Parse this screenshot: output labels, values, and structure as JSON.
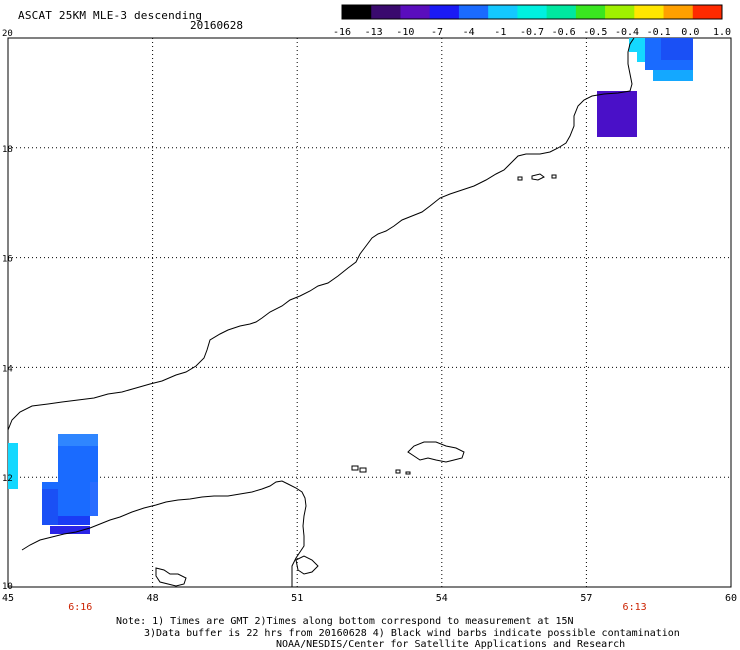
{
  "title": "ASCAT 25KM MLE-3 descending",
  "date": "20160628",
  "colorbar": {
    "labels": [
      "-16",
      "-13",
      "-10",
      "-7",
      "-4",
      "-1",
      "-0.7",
      "-0.6",
      "-0.5",
      "-0.4",
      "-0.1",
      "0.0",
      "1.0"
    ],
    "colors": [
      "#000000",
      "#3a0a6e",
      "#5a0dbd",
      "#1a1af5",
      "#1a6bff",
      "#14c8ff",
      "#00f0e0",
      "#00e8a0",
      "#3ae620",
      "#a0f000",
      "#ffe600",
      "#ffa000",
      "#ff2a00"
    ]
  },
  "x_ticks": [
    "45",
    "48",
    "51",
    "54",
    "57",
    "60"
  ],
  "y_ticks": [
    "20",
    "18",
    "16",
    "14",
    "12",
    "10"
  ],
  "pass_times": [
    {
      "label": "6:16",
      "lon": 46.5
    },
    {
      "label": "6:13",
      "lon": 58.0
    }
  ],
  "notes": [
    "Note: 1) Times are GMT 2)Times along bottom correspond to measurement at 15N",
    "3)Data buffer is 22 hrs from 20160628 4) Black wind barbs indicate possible contamination",
    "NOAA/NESDIS/Center for Satellite Applications and Research"
  ],
  "colors": {
    "grid": "#000000",
    "pass_time": "#cc2200",
    "cyan": "#14d8ff",
    "blue": "#1a6bff",
    "blue_dark": "#1a3cf5",
    "indigo": "#4a10c8"
  }
}
